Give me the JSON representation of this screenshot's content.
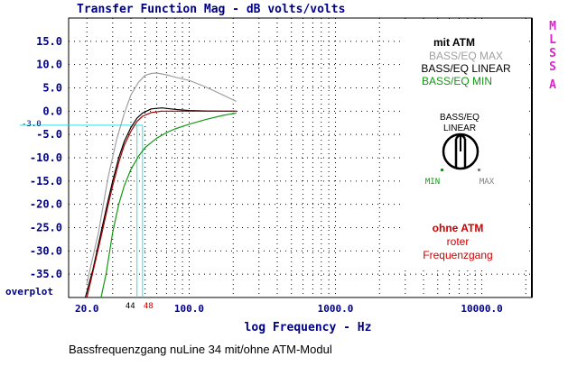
{
  "chart_data": {
    "type": "line",
    "title": "Transfer Function Mag - dB volts/volts",
    "xlabel": "log Frequency - Hz",
    "x_scale": "log",
    "xlim": [
      15,
      22000
    ],
    "ylim": [
      -40,
      20
    ],
    "x_ticks": [
      {
        "value": 20,
        "label": "20.0"
      },
      {
        "value": 100,
        "label": "100.0"
      },
      {
        "value": 1000,
        "label": "1000.0"
      },
      {
        "value": 10000,
        "label": "10000.0"
      }
    ],
    "y_ticks": [
      {
        "value": 15,
        "label": "15.0"
      },
      {
        "value": 10,
        "label": "10.0"
      },
      {
        "value": 5,
        "label": "5.0"
      },
      {
        "value": 0,
        "label": "0.0"
      },
      {
        "value": -5,
        "label": "-5.0"
      },
      {
        "value": -10,
        "label": "-10.0"
      },
      {
        "value": -15,
        "label": "-15.0"
      },
      {
        "value": -20,
        "label": "-20.0"
      },
      {
        "value": -25,
        "label": "-25.0"
      },
      {
        "value": -30,
        "label": "-30.0"
      },
      {
        "value": -35,
        "label": "-35.0"
      }
    ],
    "grid": true,
    "series": [
      {
        "key": "max",
        "name": "BASS/EQ MAX",
        "color": "#a0a0a0",
        "x": [
          20,
          24,
          28,
          32,
          36,
          40,
          45,
          50,
          55,
          60,
          70,
          80,
          100,
          130,
          170,
          210
        ],
        "y": [
          -37,
          -26,
          -14,
          -6,
          -0.5,
          3.5,
          6.2,
          7.7,
          8.1,
          8.2,
          7.8,
          7.3,
          6.6,
          5.2,
          3.5,
          2.1
        ]
      },
      {
        "key": "linear",
        "name": "BASS/EQ LINEAR",
        "color": "#000000",
        "x": [
          19.5,
          22,
          25,
          28,
          30,
          33,
          36,
          40,
          44,
          48,
          55,
          65,
          80,
          100,
          130,
          170,
          210
        ],
        "y": [
          -40,
          -34,
          -26,
          -19,
          -15,
          -10,
          -6.5,
          -3.5,
          -1.5,
          -0.4,
          0.5,
          0.7,
          0.4,
          0.15,
          0.05,
          0,
          0
        ]
      },
      {
        "key": "min",
        "name": "BASS/EQ MIN",
        "color": "#119911",
        "x": [
          25,
          27,
          30,
          33,
          36,
          40,
          45,
          50,
          60,
          70,
          80,
          100,
          130,
          170,
          210
        ],
        "y": [
          -40,
          -35,
          -26,
          -20,
          -16,
          -12.5,
          -9.7,
          -7.8,
          -5.8,
          -4.6,
          -3.8,
          -2.8,
          -1.8,
          -0.9,
          -0.4
        ]
      },
      {
        "key": "ohne",
        "name": "roter Frequenzgang",
        "color": "#aa0000",
        "x": [
          20,
          22,
          25,
          28,
          30,
          33,
          36,
          40,
          44,
          48,
          55,
          65,
          80,
          100,
          130,
          170,
          210
        ],
        "y": [
          -40,
          -34.5,
          -27,
          -20,
          -16,
          -11,
          -7.3,
          -4.3,
          -2.2,
          -1.1,
          -0.3,
          0,
          0,
          0,
          0,
          0,
          0
        ]
      }
    ],
    "reference_lines": {
      "level": -3,
      "level_label": "-3.0",
      "freqs": [
        44,
        48
      ],
      "freq_labels": [
        "44",
        "48"
      ],
      "color": "#33dddd"
    }
  },
  "side_label": [
    "M",
    "L",
    "S",
    "S",
    "A"
  ],
  "overplot_label": "overplot",
  "legend": {
    "title": "mit ATM",
    "max": "BASS/EQ MAX",
    "linear": "BASS/EQ LINEAR",
    "min": "BASS/EQ MIN"
  },
  "knob": {
    "label_line1": "BASS/EQ",
    "label_line2": "LINEAR",
    "min_label": "MIN",
    "max_label": "MAX"
  },
  "ohne_atm": {
    "title": "ohne ATM",
    "line1": "roter",
    "line2": "Frequenzgang"
  },
  "caption": "Bassfrequenzgang nuLine 34 mit/ohne ATM-Modul"
}
